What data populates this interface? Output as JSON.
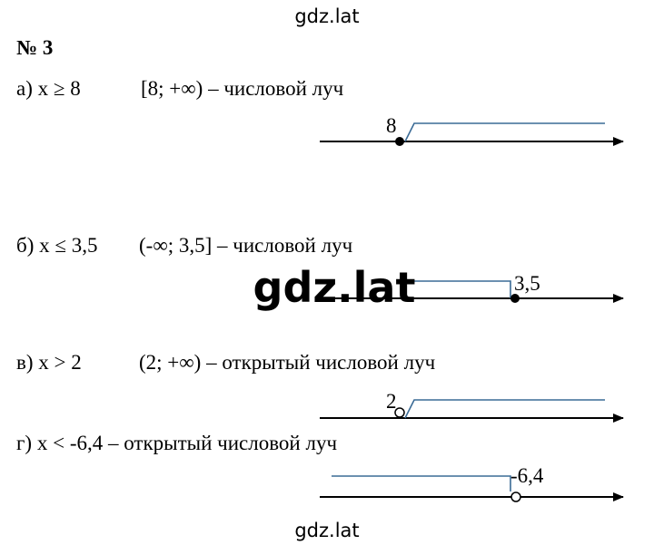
{
  "header": {
    "watermark": "gdz.lat"
  },
  "title": "№ 3",
  "items": [
    {
      "condition": "а) x ≥ 8",
      "answer": "[8; +∞) – числовой луч",
      "point": "8"
    },
    {
      "condition": "б) x ≤ 3,5",
      "answer": "(-∞; 3,5] – числовой луч",
      "point": "3,5"
    },
    {
      "condition": "в) x > 2",
      "answer": "(2; +∞) – открытый числовой луч",
      "point": "2"
    },
    {
      "condition": "г) x < -6,4 – открытый числовой луч",
      "point": "-6,4"
    }
  ],
  "overlay_watermark": "gdz.lat",
  "footer": {
    "watermark": "gdz.lat"
  }
}
